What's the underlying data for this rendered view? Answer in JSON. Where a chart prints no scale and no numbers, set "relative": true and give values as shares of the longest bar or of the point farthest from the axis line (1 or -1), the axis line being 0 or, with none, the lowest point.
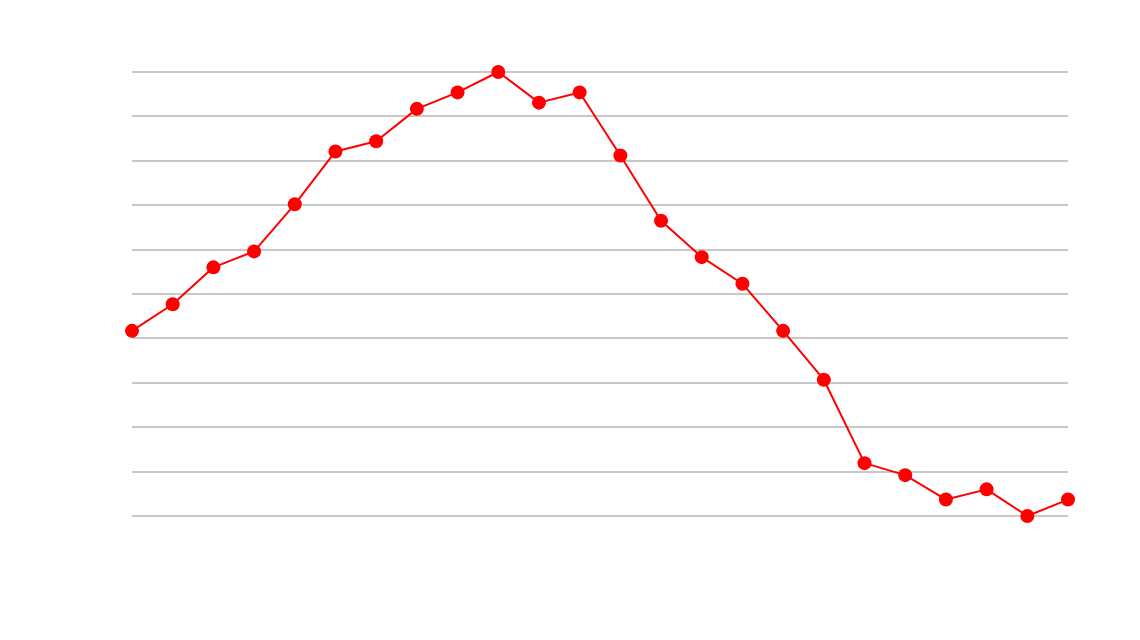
{
  "chart_data": {
    "type": "line",
    "relative": true,
    "grid": "y",
    "marker": "circle",
    "legend": false,
    "tick_labels": false,
    "categories": [
      null,
      null,
      null,
      null,
      null,
      null,
      null,
      null,
      null,
      null,
      null,
      null,
      null,
      null,
      null,
      null,
      null,
      null,
      null,
      null,
      null,
      null,
      null,
      null
    ],
    "series": [
      {
        "color": "#ff0000",
        "values": [
          0.417,
          0.477,
          0.56,
          0.596,
          0.702,
          0.821,
          0.844,
          0.917,
          0.954,
          1,
          0.931,
          0.954,
          0.812,
          0.665,
          0.583,
          0.523,
          0.417,
          0.307,
          0.119,
          0.092,
          0.037,
          0.06,
          0,
          0.037
        ]
      }
    ]
  }
}
